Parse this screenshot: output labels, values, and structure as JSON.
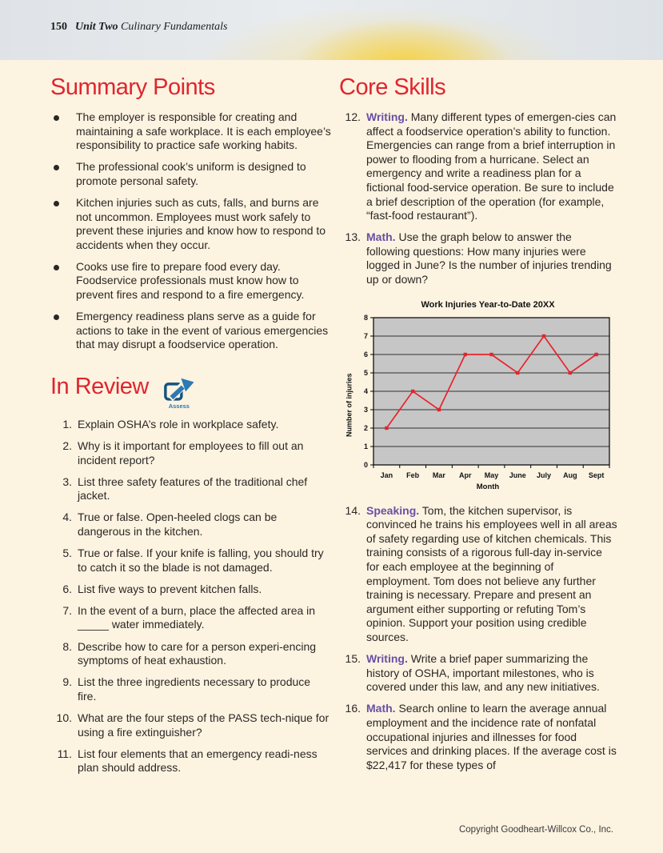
{
  "page": {
    "number": "150",
    "unit": "Unit Two",
    "unit_subtitle": "Culinary Fundamentals",
    "footer": "Copyright Goodheart-Willcox Co., Inc."
  },
  "summary": {
    "title": "Summary Points",
    "bullets": [
      "The employer is responsible for creating and maintaining a safe workplace. It is each employee’s responsibility to practice safe working habits.",
      "The professional cook’s uniform is designed to promote personal safety.",
      "Kitchen injuries such as cuts, falls, and burns are not uncommon. Employees must work safely to prevent these injuries and know how to respond to accidents when they occur.",
      "Cooks use fire to prepare food every day. Foodservice professionals must know how to prevent fires and respond to a fire emergency.",
      "Emergency readiness plans serve as a guide for actions to take in the event of various emergencies that may disrupt a foodservice operation."
    ]
  },
  "in_review": {
    "title": "In Review",
    "assess_label": "Assess",
    "items": [
      {
        "num": "1.",
        "text": "Explain OSHA’s role in workplace safety."
      },
      {
        "num": "2.",
        "text": "Why is it important for employees to fill out an incident report?"
      },
      {
        "num": "3.",
        "text": "List three safety features of the traditional chef jacket."
      },
      {
        "num": "4.",
        "text": "True or false. Open-heeled clogs can be dangerous in the kitchen."
      },
      {
        "num": "5.",
        "text": "True or false. If your knife is falling, you should try to catch it so the blade is not damaged."
      },
      {
        "num": "6.",
        "text": "List five ways to prevent kitchen falls."
      },
      {
        "num": "7.",
        "text": "In the event of a burn, place the affected area in _____ water immediately."
      },
      {
        "num": "8.",
        "text": "Describe how to care for a person experi-encing symptoms of heat exhaustion."
      },
      {
        "num": "9.",
        "text": "List the three ingredients necessary to produce fire."
      },
      {
        "num": "10.",
        "text": "What are the four steps of the PASS tech-nique for using a fire extinguisher?"
      },
      {
        "num": "11.",
        "text": "List four elements that an emergency readi-ness plan should address."
      }
    ]
  },
  "core_skills": {
    "title": "Core Skills",
    "items": [
      {
        "num": "12.",
        "lead": "Writing.",
        "text": "Many different types of emergen-cies can affect a foodservice operation’s ability to function. Emergencies can range from a brief interruption in power to flooding from a hurricane. Select an emergency and write a readiness plan for a fictional food-service operation. Be sure to include a brief description of the operation (for example, “fast-food restaurant”)."
      },
      {
        "num": "13.",
        "lead": "Math.",
        "text": "Use the graph below to answer the following questions: How many injuries were logged in June? Is the number of injuries trending up or down?"
      },
      {
        "num": "14.",
        "lead": "Speaking.",
        "text": "Tom, the kitchen supervisor, is convinced he trains his employees well in all areas of safety regarding use of kitchen chemicals. This training consists of a rigorous full-day in-service for each employee at the beginning of employment. Tom does not believe any further training is necessary. Prepare and present an argument either supporting or refuting Tom’s opinion. Support your position using credible sources."
      },
      {
        "num": "15.",
        "lead": "Writing.",
        "text": "Write a brief paper summarizing the history of OSHA, important milestones, who is covered under this law, and any new initiatives."
      },
      {
        "num": "16.",
        "lead": "Math.",
        "text": "Search online to learn the average annual employment and the incidence rate of nonfatal occupational injuries and illnesses for food services and drinking places. If the average cost is $22,417 for these types of"
      }
    ]
  },
  "chart_data": {
    "type": "line",
    "title": "Work Injuries Year-to-Date 20XX",
    "categories": [
      "Jan",
      "Feb",
      "Mar",
      "Apr",
      "May",
      "June",
      "July",
      "Aug",
      "Sept"
    ],
    "values": [
      2,
      4,
      3,
      6,
      6,
      5,
      7,
      5,
      6
    ],
    "xlabel": "Month",
    "ylabel": "Number of injuries",
    "ylim": [
      0,
      8
    ],
    "ytick_step": 1,
    "grid": true,
    "legend": "none",
    "line_color": "#e8232d",
    "plot_bg": "#c6c6c6",
    "axis_color": "#000000"
  },
  "colors": {
    "heading_red": "#e0252e",
    "lead_purple": "#6a4fa3",
    "assess_blue": "#2c79b4",
    "assess_navy": "#15537d",
    "page_cream": "#fcf3e1"
  }
}
